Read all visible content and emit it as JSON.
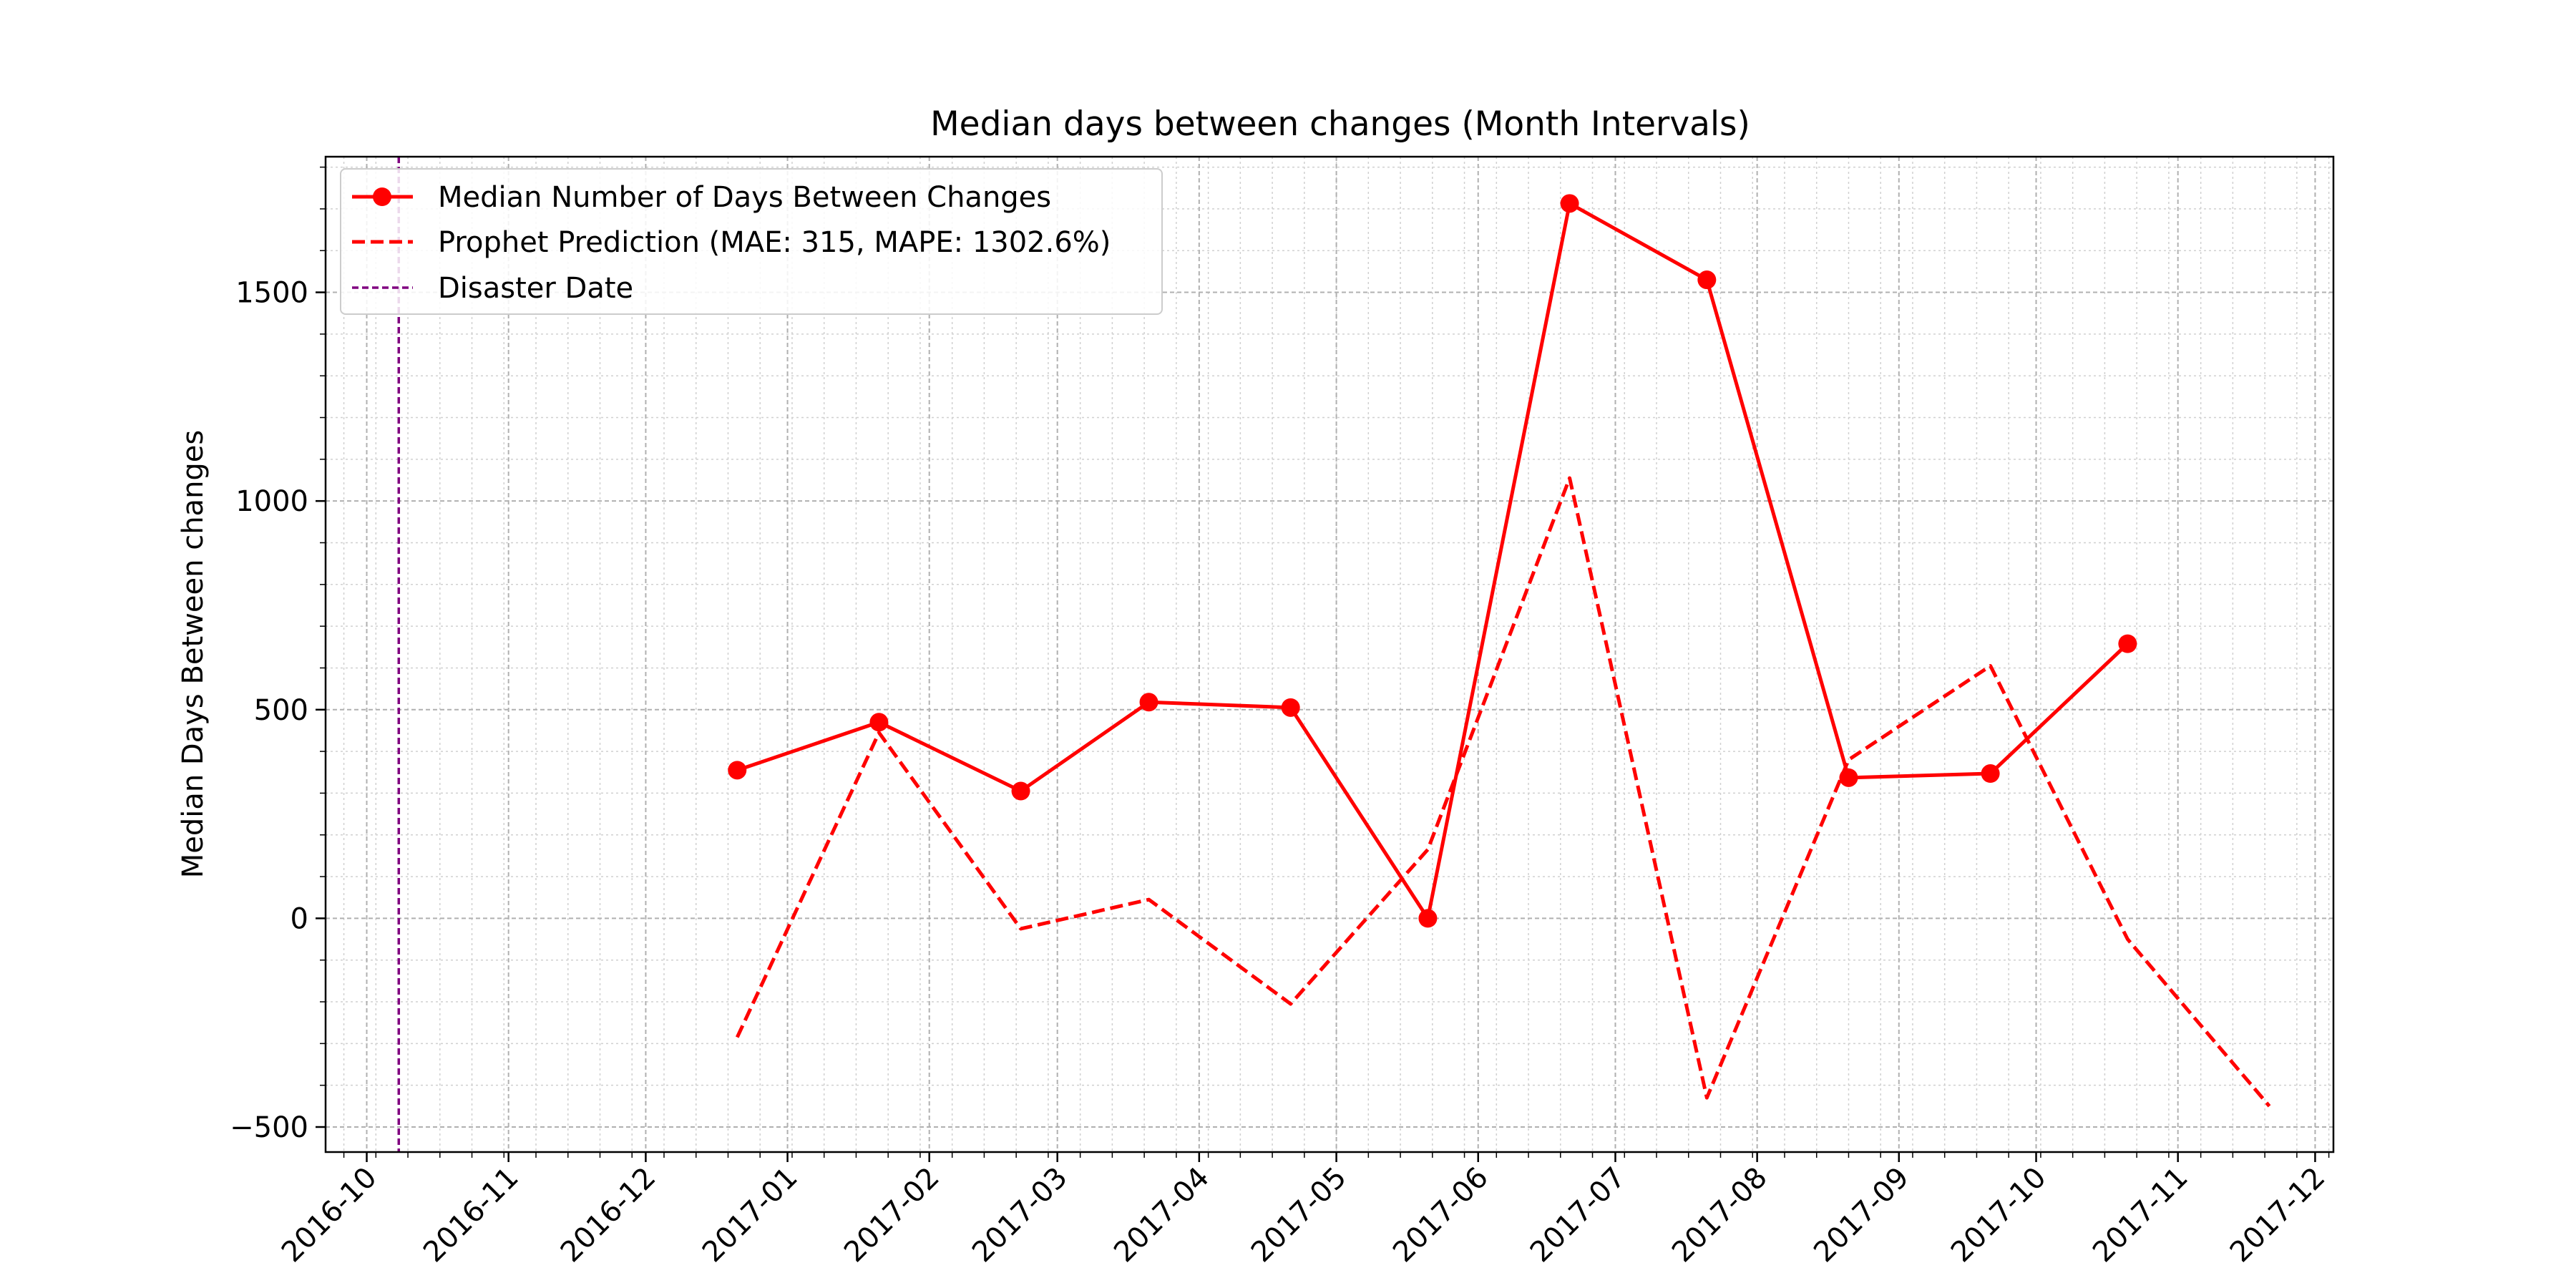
{
  "chart_data": {
    "type": "line",
    "title": "Median days between changes (Month Intervals)",
    "xlabel": "",
    "ylabel": "Median Days Between changes",
    "xlim": [
      "2016-09-22",
      "2017-12-05"
    ],
    "ylim": [
      -560,
      1825
    ],
    "grid": true,
    "legend_position": "upper left",
    "x_tick_labels": [
      "2016-10",
      "2016-11",
      "2016-12",
      "2017-01",
      "2017-02",
      "2017-03",
      "2017-04",
      "2017-05",
      "2017-06",
      "2017-07",
      "2017-08",
      "2017-09",
      "2017-10",
      "2017-11",
      "2017-12"
    ],
    "y_ticks": [
      -500,
      0,
      500,
      1000,
      1500
    ],
    "series": [
      {
        "name": "Median Number of Days Between Changes",
        "color": "#ff0000",
        "style": "solid",
        "marker": "circle",
        "x": [
          "2016-12-21",
          "2017-01-21",
          "2017-02-21",
          "2017-03-21",
          "2017-04-21",
          "2017-05-21",
          "2017-06-21",
          "2017-07-21",
          "2017-08-21",
          "2017-09-21",
          "2017-10-21"
        ],
        "y": [
          355,
          470,
          305,
          518,
          505,
          0,
          1713,
          1530,
          337,
          347,
          658
        ]
      },
      {
        "name": "Prophet Prediction (MAE: 315, MAPE: 1302.6%)",
        "color": "#ff0000",
        "style": "dashed",
        "marker": "none",
        "x": [
          "2016-12-21",
          "2017-01-21",
          "2017-02-21",
          "2017-03-21",
          "2017-04-21",
          "2017-05-21",
          "2017-06-21",
          "2017-07-21",
          "2017-08-21",
          "2017-09-21",
          "2017-10-21",
          "2017-11-21"
        ],
        "y": [
          -285,
          445,
          -25,
          45,
          -205,
          165,
          1055,
          -430,
          380,
          605,
          -50,
          -450
        ]
      }
    ],
    "vlines": [
      {
        "name": "Disaster Date",
        "x": "2016-10-08",
        "color": "#800080",
        "style": "dashed"
      }
    ]
  }
}
